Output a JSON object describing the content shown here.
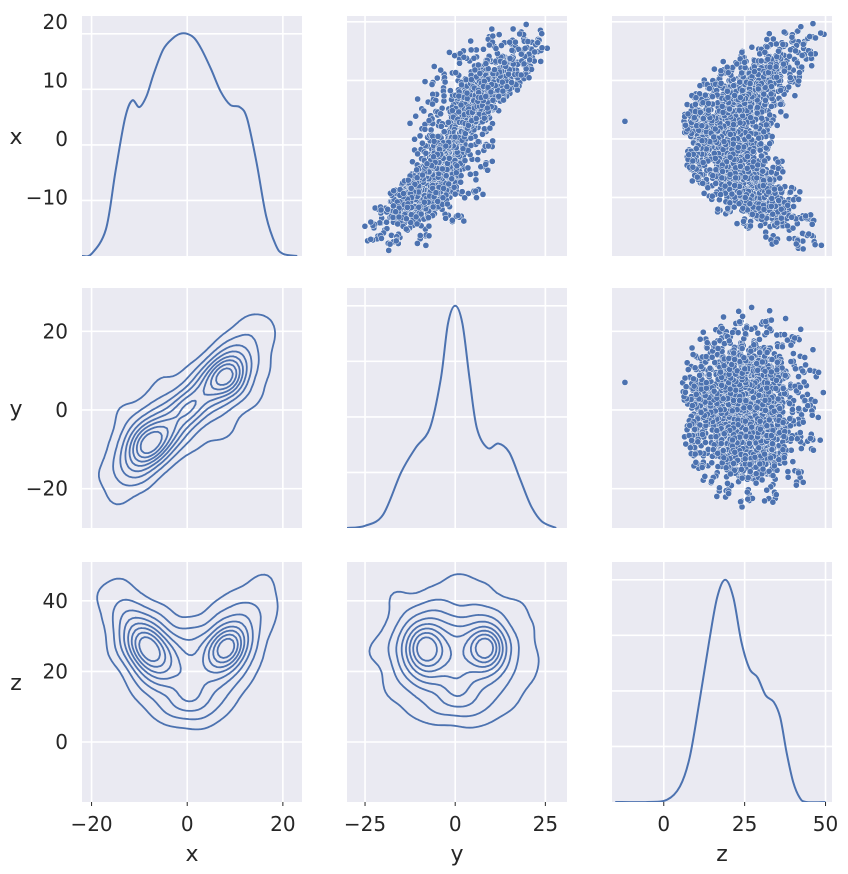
{
  "chart_data": {
    "type": "pairplot",
    "variables": [
      "x",
      "y",
      "z"
    ],
    "style": {
      "panel_background": "#eaeaf2",
      "grid_color": "#ffffff",
      "series_color": "#4c72b0",
      "marker_edge": "#ffffff",
      "grid": true
    },
    "axes": {
      "x": {
        "range": [
          -22,
          24
        ],
        "ticks": [
          -20,
          0,
          20
        ],
        "ylim": [
          -20,
          21
        ],
        "yticks": [
          -10,
          0,
          10,
          20
        ]
      },
      "y": {
        "range": [
          -30,
          31
        ],
        "ticks": [
          -25,
          0,
          25
        ],
        "yticks": [
          -20,
          0,
          20
        ]
      },
      "z": {
        "range": [
          -16,
          52
        ],
        "ticks": [
          0,
          25,
          50
        ],
        "ylim": [
          -17,
          51
        ],
        "yticks": [
          0,
          20,
          40
        ]
      }
    },
    "diagonal": {
      "kind": "kde",
      "x": {
        "points": [
          [
            -22,
            0
          ],
          [
            -20,
            0.01
          ],
          [
            -17,
            0.12
          ],
          [
            -15,
            0.38
          ],
          [
            -13,
            0.62
          ],
          [
            -11.5,
            0.7
          ],
          [
            -10,
            0.67
          ],
          [
            -8.5,
            0.72
          ],
          [
            -7,
            0.82
          ],
          [
            -5,
            0.93
          ],
          [
            -3,
            0.98
          ],
          [
            -1.5,
            1.0
          ],
          [
            0,
            1.0
          ],
          [
            1.5,
            0.98
          ],
          [
            3,
            0.93
          ],
          [
            5,
            0.84
          ],
          [
            7,
            0.74
          ],
          [
            9,
            0.68
          ],
          [
            11,
            0.67
          ],
          [
            12.5,
            0.62
          ],
          [
            14.5,
            0.42
          ],
          [
            16.5,
            0.18
          ],
          [
            18.5,
            0.05
          ],
          [
            20,
            0.01
          ],
          [
            23,
            0
          ]
        ]
      },
      "y": {
        "points": [
          [
            -30,
            0
          ],
          [
            -25,
            0.01
          ],
          [
            -20,
            0.06
          ],
          [
            -15,
            0.25
          ],
          [
            -11,
            0.36
          ],
          [
            -7,
            0.45
          ],
          [
            -4,
            0.67
          ],
          [
            -2,
            0.92
          ],
          [
            0,
            1.0
          ],
          [
            2,
            0.92
          ],
          [
            4,
            0.67
          ],
          [
            6,
            0.45
          ],
          [
            9,
            0.36
          ],
          [
            12,
            0.38
          ],
          [
            15,
            0.34
          ],
          [
            18,
            0.22
          ],
          [
            21,
            0.1
          ],
          [
            24,
            0.03
          ],
          [
            28,
            0
          ]
        ]
      },
      "z": {
        "points": [
          [
            -15,
            0
          ],
          [
            -5,
            0
          ],
          [
            1,
            0.01
          ],
          [
            5,
            0.07
          ],
          [
            8,
            0.2
          ],
          [
            11,
            0.45
          ],
          [
            14,
            0.72
          ],
          [
            16.5,
            0.92
          ],
          [
            19,
            1.0
          ],
          [
            21.5,
            0.92
          ],
          [
            24,
            0.72
          ],
          [
            26.5,
            0.6
          ],
          [
            29,
            0.56
          ],
          [
            31.5,
            0.48
          ],
          [
            34,
            0.45
          ],
          [
            36,
            0.38
          ],
          [
            38,
            0.22
          ],
          [
            40,
            0.09
          ],
          [
            42,
            0.02
          ],
          [
            44,
            0
          ],
          [
            50,
            0
          ]
        ]
      }
    },
    "upper": {
      "kind": "scatter",
      "panels": [
        {
          "row": "x",
          "col": "y",
          "outlier": null
        },
        {
          "row": "x",
          "col": "z",
          "outlier": [
            -12,
            3
          ]
        },
        {
          "row": "y",
          "col": "z",
          "outlier": [
            -12,
            7
          ]
        }
      ]
    },
    "lower": {
      "kind": "kde_contour",
      "panels": [
        {
          "row": "y",
          "col": "x"
        },
        {
          "row": "z",
          "col": "x"
        },
        {
          "row": "z",
          "col": "y"
        }
      ]
    }
  }
}
